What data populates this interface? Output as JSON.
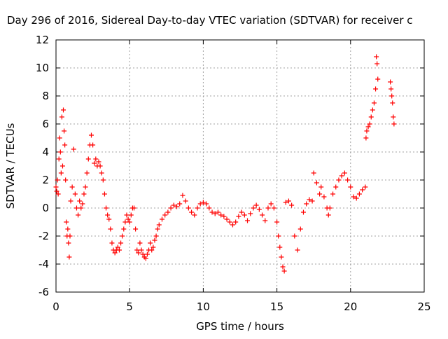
{
  "chart_data": {
    "type": "scatter",
    "title": "Day 296 of 2016, Sidereal Day-to-day VTEC variation (SDTVAR) for receiver c",
    "xlabel": "GPS time / hours",
    "ylabel": "SDTVAR / TECUs",
    "xlim": [
      0,
      25
    ],
    "ylim": [
      -6,
      12
    ],
    "xticks": [
      0,
      5,
      10,
      15,
      20,
      25
    ],
    "yticks": [
      -6,
      -4,
      -2,
      0,
      2,
      4,
      6,
      8,
      10,
      12
    ],
    "grid": true,
    "marker": "+",
    "color": "#ff0000",
    "series": [
      {
        "points": [
          [
            0.0,
            1.5
          ],
          [
            0.05,
            1.2
          ],
          [
            0.1,
            2.0
          ],
          [
            0.15,
            1.0
          ],
          [
            0.2,
            3.5
          ],
          [
            0.25,
            5.0
          ],
          [
            0.3,
            4.0
          ],
          [
            0.35,
            2.5
          ],
          [
            0.4,
            6.5
          ],
          [
            0.45,
            3.0
          ],
          [
            0.5,
            7.0
          ],
          [
            0.55,
            5.5
          ],
          [
            0.6,
            4.5
          ],
          [
            0.65,
            2.0
          ],
          [
            0.7,
            -1.0
          ],
          [
            0.75,
            -2.0
          ],
          [
            0.8,
            -1.5
          ],
          [
            0.85,
            -2.5
          ],
          [
            0.9,
            -3.5
          ],
          [
            0.95,
            -2.0
          ],
          [
            1.0,
            0.5
          ],
          [
            1.1,
            1.5
          ],
          [
            1.2,
            4.2
          ],
          [
            1.3,
            1.0
          ],
          [
            1.4,
            0.0
          ],
          [
            1.5,
            -0.5
          ],
          [
            1.6,
            0.5
          ],
          [
            1.7,
            0.0
          ],
          [
            1.8,
            0.3
          ],
          [
            1.9,
            1.0
          ],
          [
            2.0,
            1.5
          ],
          [
            2.1,
            2.5
          ],
          [
            2.2,
            3.5
          ],
          [
            2.3,
            4.5
          ],
          [
            2.4,
            5.2
          ],
          [
            2.5,
            4.5
          ],
          [
            2.6,
            3.2
          ],
          [
            2.7,
            3.5
          ],
          [
            2.8,
            3.0
          ],
          [
            2.9,
            3.3
          ],
          [
            3.0,
            3.0
          ],
          [
            3.1,
            2.5
          ],
          [
            3.2,
            2.0
          ],
          [
            3.3,
            1.0
          ],
          [
            3.4,
            0.0
          ],
          [
            3.5,
            -0.5
          ],
          [
            3.6,
            -0.8
          ],
          [
            3.7,
            -1.5
          ],
          [
            3.8,
            -2.5
          ],
          [
            3.9,
            -3.0
          ],
          [
            4.0,
            -3.2
          ],
          [
            4.1,
            -3.0
          ],
          [
            4.2,
            -2.8
          ],
          [
            4.3,
            -3.0
          ],
          [
            4.4,
            -2.5
          ],
          [
            4.5,
            -2.0
          ],
          [
            4.6,
            -1.5
          ],
          [
            4.7,
            -1.0
          ],
          [
            4.8,
            -0.5
          ],
          [
            4.9,
            -0.8
          ],
          [
            5.0,
            -1.0
          ],
          [
            5.1,
            -0.5
          ],
          [
            5.2,
            0.0
          ],
          [
            5.3,
            0.0
          ],
          [
            5.4,
            -1.5
          ],
          [
            5.5,
            -3.0
          ],
          [
            5.6,
            -3.2
          ],
          [
            5.7,
            -2.5
          ],
          [
            5.8,
            -3.0
          ],
          [
            5.9,
            -3.3
          ],
          [
            6.0,
            -3.5
          ],
          [
            6.1,
            -3.6
          ],
          [
            6.2,
            -3.3
          ],
          [
            6.3,
            -3.0
          ],
          [
            6.4,
            -2.5
          ],
          [
            6.5,
            -3.0
          ],
          [
            6.6,
            -2.8
          ],
          [
            6.7,
            -2.3
          ],
          [
            6.8,
            -2.0
          ],
          [
            6.9,
            -1.5
          ],
          [
            7.0,
            -1.2
          ],
          [
            7.2,
            -0.8
          ],
          [
            7.4,
            -0.5
          ],
          [
            7.6,
            -0.3
          ],
          [
            7.8,
            0.0
          ],
          [
            8.0,
            0.2
          ],
          [
            8.2,
            0.1
          ],
          [
            8.4,
            0.3
          ],
          [
            8.6,
            0.9
          ],
          [
            8.8,
            0.5
          ],
          [
            9.0,
            0.0
          ],
          [
            9.2,
            -0.3
          ],
          [
            9.4,
            -0.5
          ],
          [
            9.6,
            0.0
          ],
          [
            9.8,
            0.3
          ],
          [
            10.0,
            0.4
          ],
          [
            10.2,
            0.3
          ],
          [
            10.4,
            0.0
          ],
          [
            10.6,
            -0.3
          ],
          [
            10.8,
            -0.4
          ],
          [
            11.0,
            -0.3
          ],
          [
            11.2,
            -0.5
          ],
          [
            11.4,
            -0.6
          ],
          [
            11.6,
            -0.8
          ],
          [
            11.8,
            -1.0
          ],
          [
            12.0,
            -1.2
          ],
          [
            12.2,
            -1.0
          ],
          [
            12.4,
            -0.6
          ],
          [
            12.6,
            -0.3
          ],
          [
            12.8,
            -0.5
          ],
          [
            13.0,
            -0.9
          ],
          [
            13.2,
            -0.4
          ],
          [
            13.4,
            0.0
          ],
          [
            13.6,
            0.2
          ],
          [
            13.8,
            -0.1
          ],
          [
            14.0,
            -0.5
          ],
          [
            14.2,
            -0.9
          ],
          [
            14.4,
            0.0
          ],
          [
            14.6,
            0.3
          ],
          [
            14.8,
            0.0
          ],
          [
            15.0,
            -1.0
          ],
          [
            15.1,
            -2.0
          ],
          [
            15.2,
            -2.8
          ],
          [
            15.3,
            -3.5
          ],
          [
            15.4,
            -4.2
          ],
          [
            15.5,
            -4.5
          ],
          [
            15.6,
            0.4
          ],
          [
            15.8,
            0.5
          ],
          [
            16.0,
            0.2
          ],
          [
            16.2,
            -2.0
          ],
          [
            16.4,
            -3.0
          ],
          [
            16.6,
            -1.5
          ],
          [
            16.8,
            -0.3
          ],
          [
            17.0,
            0.3
          ],
          [
            17.2,
            0.6
          ],
          [
            17.4,
            0.5
          ],
          [
            17.5,
            2.5
          ],
          [
            17.7,
            1.8
          ],
          [
            17.9,
            1.0
          ],
          [
            18.0,
            1.5
          ],
          [
            18.2,
            0.8
          ],
          [
            18.4,
            0.0
          ],
          [
            18.5,
            -0.5
          ],
          [
            18.6,
            0.0
          ],
          [
            18.8,
            1.0
          ],
          [
            19.0,
            1.5
          ],
          [
            19.2,
            2.0
          ],
          [
            19.4,
            2.3
          ],
          [
            19.6,
            2.5
          ],
          [
            19.8,
            2.0
          ],
          [
            20.0,
            1.5
          ],
          [
            20.2,
            0.8
          ],
          [
            20.4,
            0.7
          ],
          [
            20.6,
            1.0
          ],
          [
            20.8,
            1.3
          ],
          [
            21.0,
            1.5
          ],
          [
            21.05,
            5.0
          ],
          [
            21.1,
            5.5
          ],
          [
            21.2,
            5.8
          ],
          [
            21.3,
            6.0
          ],
          [
            21.4,
            6.5
          ],
          [
            21.5,
            7.0
          ],
          [
            21.6,
            7.5
          ],
          [
            21.7,
            8.5
          ],
          [
            21.75,
            10.8
          ],
          [
            21.8,
            10.3
          ],
          [
            21.85,
            9.2
          ],
          [
            22.7,
            9.0
          ],
          [
            22.75,
            8.5
          ],
          [
            22.8,
            8.0
          ],
          [
            22.85,
            7.5
          ],
          [
            22.9,
            6.5
          ],
          [
            22.95,
            6.0
          ]
        ]
      }
    ]
  }
}
